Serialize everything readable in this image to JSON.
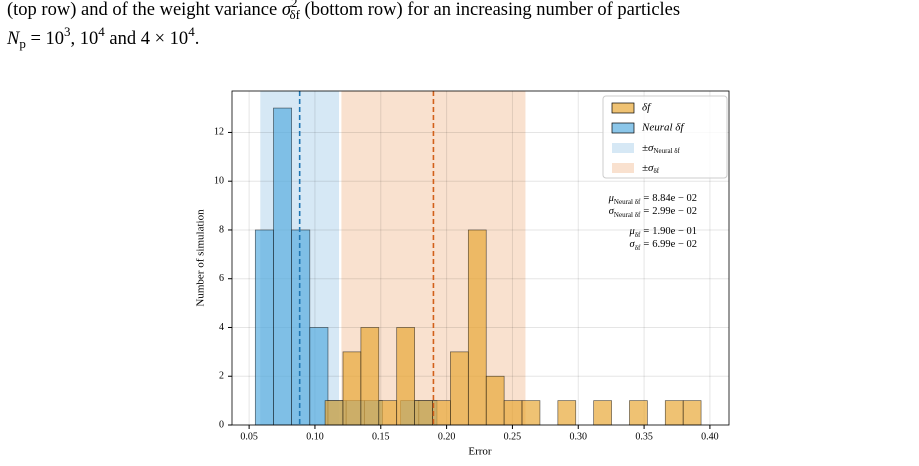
{
  "caption": {
    "lines": [
      [
        {
          "text": "(top row) and of the weight variance ",
          "style": "normal"
        },
        {
          "text": "σ",
          "style": "italic"
        },
        {
          "text": "2",
          "style": "sup"
        },
        {
          "text": "δf",
          "style": "sub"
        },
        {
          "text": " (bottom row) for an increasing number of particles",
          "style": "normal"
        }
      ],
      [
        {
          "text": "N",
          "style": "italic"
        },
        {
          "text": "p",
          "style": "sub"
        },
        {
          "text": " = 10",
          "style": "normal"
        },
        {
          "text": "3",
          "style": "sup"
        },
        {
          "text": ", 10",
          "style": "normal"
        },
        {
          "text": "4",
          "style": "sup"
        },
        {
          "text": " and 4 × 10",
          "style": "normal"
        },
        {
          "text": "4",
          "style": "sup"
        },
        {
          "text": ".",
          "style": "normal"
        }
      ]
    ]
  },
  "chart_data": {
    "type": "histogram",
    "x_label": "Error",
    "y_label": "Number of simulation",
    "xlim": [
      0.037,
      0.4145
    ],
    "ylim": [
      0,
      13.7
    ],
    "xticks": [
      0.05,
      {
        "value": 0.1,
        "label": "0.10"
      },
      0.15,
      {
        "value": 0.2,
        "label": "0.20"
      },
      0.25,
      {
        "value": 0.3,
        "label": "0.30"
      },
      0.35,
      {
        "value": 0.4,
        "label": "0.40"
      }
    ],
    "yticks": [
      0,
      2,
      4,
      6,
      8,
      10,
      12
    ],
    "grid": true,
    "legend": "upper right",
    "relation": "=",
    "series": [
      {
        "name": "δf",
        "color": "#e8a838",
        "line_color": "#d2601a",
        "band_color": "#f4c9a8",
        "bins": [
          0.1077,
          0.1213,
          0.1349,
          0.1485,
          0.1621,
          0.1757,
          0.1893,
          0.2029,
          0.2165,
          0.2301,
          0.2437,
          0.2573,
          0.2709,
          0.2845,
          0.2981,
          0.3117,
          0.3253,
          0.3389,
          0.3525,
          0.3661,
          0.3797,
          0.3933
        ],
        "values": [
          1,
          3,
          4,
          1,
          4,
          1,
          1,
          3,
          8,
          2,
          1,
          1,
          0,
          1,
          0,
          1,
          0,
          1,
          0,
          1,
          1
        ],
        "mean": {
          "value": 0.19,
          "label": "1.90e − 01"
        },
        "std": {
          "value": 0.0699,
          "label": "6.99e − 02"
        },
        "mean_symbol": "μ",
        "std_symbol": "σ",
        "subscript": "δf",
        "band_symbol": "±σ"
      },
      {
        "name": "Neural δf",
        "color": "#5aaee0",
        "line_color": "#1f77b4",
        "band_color": "#b5d5ec",
        "bins": [
          0.0547,
          0.0685,
          0.0823,
          0.0961,
          0.1099,
          0.1237,
          0.1375,
          0.1513,
          0.1651,
          0.1789,
          0.1927
        ],
        "values": [
          8,
          13,
          8,
          4,
          1,
          1,
          1,
          0,
          1,
          1
        ],
        "mean": {
          "value": 0.0884,
          "label": "8.84e − 02"
        },
        "std": {
          "value": 0.0299,
          "label": "2.99e − 02"
        },
        "mean_symbol": "μ",
        "std_symbol": "σ",
        "subscript": "Neural δf",
        "band_symbol": "±σ"
      }
    ]
  }
}
